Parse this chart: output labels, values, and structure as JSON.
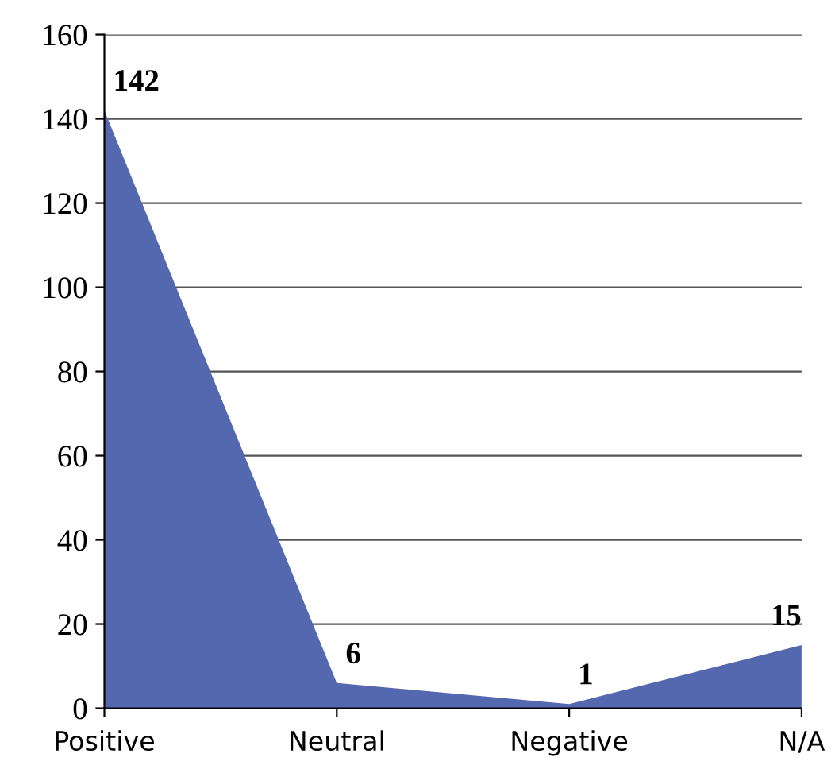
{
  "chart_data": {
    "type": "area",
    "categories": [
      "Positive",
      "Neutral",
      "Negative",
      "N/A"
    ],
    "values": [
      142,
      6,
      1,
      15
    ],
    "color": "#5468b0",
    "ylim": [
      0,
      160
    ],
    "yticks": [
      0,
      20,
      40,
      60,
      80,
      100,
      120,
      140,
      160
    ],
    "grid": "y",
    "data_labels": true
  }
}
